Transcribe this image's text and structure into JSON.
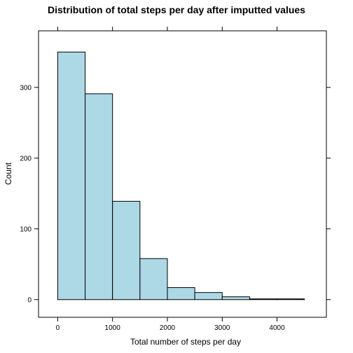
{
  "chart_data": {
    "type": "bar",
    "title": "Distribution of total steps per day after imputted values",
    "xlabel": "Total number of steps per day",
    "ylabel": "Count",
    "bin_edges": [
      0,
      500,
      1000,
      1500,
      2000,
      2500,
      3000,
      3500,
      4000,
      4500
    ],
    "values": [
      350,
      291,
      139,
      58,
      17,
      10,
      4,
      1,
      1
    ],
    "xlim": [
      -350,
      4900
    ],
    "ylim": [
      -25,
      380
    ],
    "x_ticks": [
      0,
      1000,
      2000,
      3000,
      4000
    ],
    "x_tick_labels": [
      "0",
      "1000",
      "2000",
      "3000",
      "4000"
    ],
    "y_ticks": [
      0,
      100,
      200,
      300
    ],
    "y_tick_labels": [
      "0",
      "100",
      "200",
      "300"
    ],
    "bar_color": "#add8e6",
    "bar_edge_color": "#000000",
    "grid": false,
    "legend": "none"
  }
}
